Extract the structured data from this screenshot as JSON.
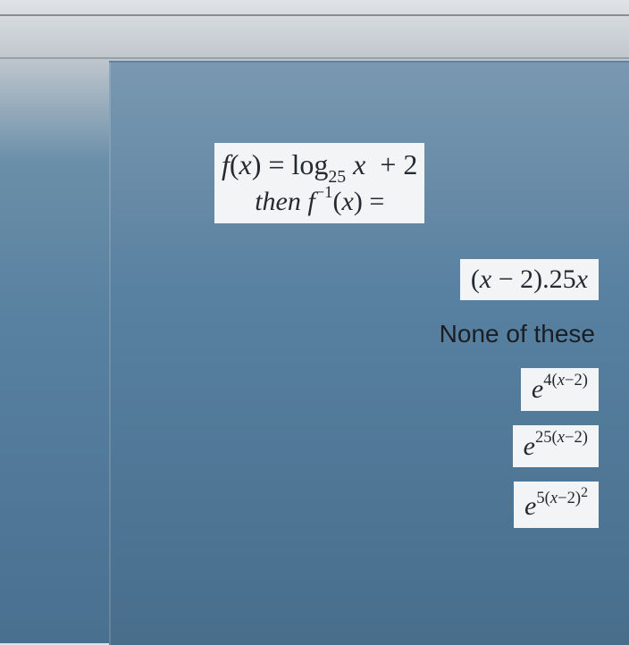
{
  "question": {
    "line1_html": "<span>f</span><span class='upright'>(</span><span>x</span><span class='upright'>)</span> <span class='upright'>=</span> <span class='upright'>log</span><span class='sub upright'>25</span> <span>x</span>&nbsp; <span class='upright'>+ 2</span>",
    "line2_html": "<span>then f</span><span class='sup upright'>&minus;1</span><span class='upright'>(</span><span>x</span><span class='upright'>)</span> <span class='upright'>=</span>"
  },
  "options": {
    "a_html": "<span class='upright'>(</span><span>x</span> <span class='upright'>&minus; 2).25</span><span>x</span>",
    "b_text": "None of these",
    "c_html": "<span>e</span><span class='sup upright'>4(<span style='font-style:italic'>x</span>&minus;2)</span>",
    "d_html": "<span>e</span><span class='sup upright'>25(<span style='font-style:italic'>x</span>&minus;2)</span>",
    "e_html": "<span>e</span><span class='sup upright'>5(<span style='font-style:italic'>x</span>&minus;2)<sup style='font-size:0.85em'>2</sup></span>"
  },
  "style": {
    "box_bg": "#f2f4f6",
    "text_color": "#252a30",
    "panel_gradient_top": "#7a98b0",
    "panel_gradient_bottom": "#486e8c",
    "question_fontsize": 32,
    "option_fontsize": 30,
    "none_fontsize": 28
  }
}
